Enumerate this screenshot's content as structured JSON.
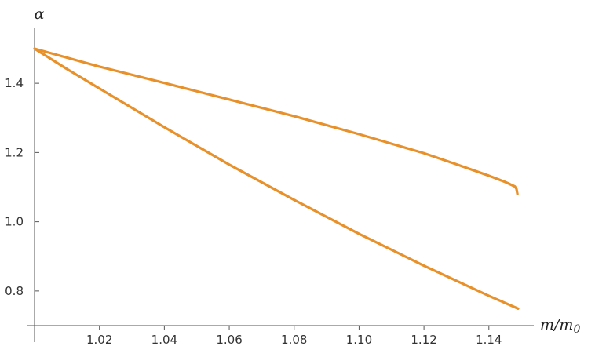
{
  "chart_data": {
    "type": "line",
    "xlabel": "m/m",
    "xlabel_sub": "0",
    "ylabel": "α",
    "xlim": [
      1.0,
      1.149
    ],
    "ylim": [
      0.7,
      1.5
    ],
    "x_ticks": [
      {
        "value": 1.02,
        "label": "1.02"
      },
      {
        "value": 1.04,
        "label": "1.04"
      },
      {
        "value": 1.06,
        "label": "1.06"
      },
      {
        "value": 1.08,
        "label": "1.08"
      },
      {
        "value": 1.1,
        "label": "1.10"
      },
      {
        "value": 1.12,
        "label": "1.12"
      },
      {
        "value": 1.14,
        "label": "1.14"
      }
    ],
    "y_ticks": [
      {
        "value": 0.8,
        "label": "0.8"
      },
      {
        "value": 1.0,
        "label": "1.0"
      },
      {
        "value": 1.2,
        "label": "1.2"
      },
      {
        "value": 1.4,
        "label": "1.4"
      }
    ],
    "grid": false,
    "color": "#e8902a",
    "series": [
      {
        "points": [
          [
            1.0,
            1.5
          ],
          [
            1.02,
            1.448
          ],
          [
            1.04,
            1.401
          ],
          [
            1.06,
            1.353
          ],
          [
            1.08,
            1.305
          ],
          [
            1.1,
            1.253
          ],
          [
            1.12,
            1.198
          ],
          [
            1.13,
            1.166
          ],
          [
            1.14,
            1.133
          ],
          [
            1.145,
            1.115
          ],
          [
            1.148,
            1.102
          ],
          [
            1.1485,
            1.095
          ],
          [
            1.1488,
            1.08
          ]
        ]
      },
      {
        "points": [
          [
            1.0,
            1.5
          ],
          [
            1.01,
            1.441
          ],
          [
            1.02,
            1.385
          ],
          [
            1.04,
            1.273
          ],
          [
            1.06,
            1.165
          ],
          [
            1.08,
            1.063
          ],
          [
            1.1,
            0.965
          ],
          [
            1.12,
            0.873
          ],
          [
            1.14,
            0.786
          ],
          [
            1.149,
            0.749
          ]
        ]
      }
    ]
  }
}
